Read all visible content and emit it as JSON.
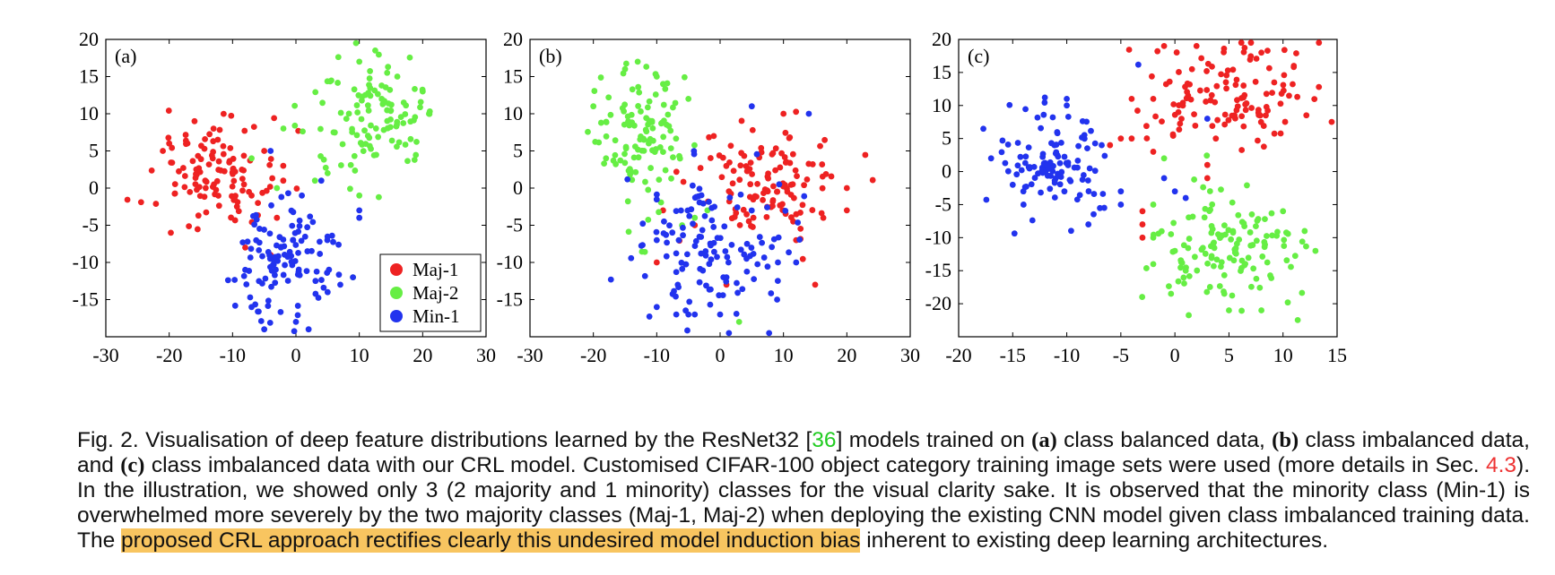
{
  "chart_data": [
    {
      "type": "scatter",
      "panel_label": "(a)",
      "xlim": [
        -30,
        30
      ],
      "ylim": [
        -20,
        20
      ],
      "xticks": [
        -30,
        -20,
        -10,
        0,
        10,
        20,
        30
      ],
      "yticks": [
        20,
        15,
        10,
        5,
        0,
        -5,
        -10,
        -15
      ],
      "legend": "bottom-right",
      "series": [
        {
          "name": "Maj-1",
          "color": "#ee2222",
          "cx": -13,
          "cy": 2,
          "sx": 5,
          "sy": 4,
          "n": 110,
          "extra": [
            [
              -21,
              5
            ],
            [
              -20,
              6
            ],
            [
              -16,
              9
            ],
            [
              -13,
              8
            ],
            [
              -5,
              5
            ],
            [
              -2,
              1
            ],
            [
              -3,
              -4
            ],
            [
              -8,
              -8
            ],
            [
              -6,
              -2
            ],
            [
              -4,
              -9
            ],
            [
              -2,
              3
            ],
            [
              -7,
              -1
            ]
          ]
        },
        {
          "name": "Maj-2",
          "color": "#66ee44",
          "cx": 12,
          "cy": 9,
          "sx": 5,
          "sy": 4,
          "n": 110,
          "extra": [
            [
              10,
              17
            ],
            [
              16,
              15
            ],
            [
              20,
              13
            ],
            [
              5,
              2
            ],
            [
              3,
              1
            ],
            [
              -3,
              0
            ],
            [
              -7,
              4
            ],
            [
              9,
              -12
            ],
            [
              10,
              -1
            ],
            [
              21,
              10
            ]
          ]
        },
        {
          "name": "Min-1",
          "color": "#2233ee",
          "cx": -2,
          "cy": -10,
          "sx": 4,
          "sy": 4.5,
          "n": 110,
          "extra": [
            [
              -8,
              -11
            ],
            [
              -7,
              -16
            ],
            [
              -5,
              -19
            ],
            [
              0,
              -18
            ],
            [
              2,
              -19
            ],
            [
              5,
              -14
            ],
            [
              7,
              -13
            ],
            [
              9,
              -12
            ],
            [
              10,
              -3
            ],
            [
              10,
              -4
            ],
            [
              4,
              1
            ],
            [
              -4,
              5
            ]
          ]
        }
      ]
    },
    {
      "type": "scatter",
      "panel_label": "(b)",
      "xlim": [
        -30,
        30
      ],
      "ylim": [
        -20,
        20
      ],
      "xticks": [
        -30,
        -20,
        -10,
        0,
        10,
        20,
        30
      ],
      "yticks": [
        20,
        15,
        10,
        5,
        0,
        -5,
        -10,
        -15
      ],
      "series": [
        {
          "name": "Maj-1",
          "color": "#ee2222",
          "cx": 8,
          "cy": 0,
          "sx": 6,
          "sy": 3.5,
          "n": 120,
          "extra": [
            [
              10,
              10
            ],
            [
              -1,
              7
            ],
            [
              20,
              0
            ],
            [
              20,
              -3
            ],
            [
              -10,
              -10
            ],
            [
              15,
              -13
            ],
            [
              -4,
              -5
            ],
            [
              1,
              -13
            ],
            [
              12,
              -7
            ],
            [
              -9,
              -3
            ]
          ]
        },
        {
          "name": "Maj-2",
          "color": "#66ee44",
          "cx": -12,
          "cy": 7,
          "sx": 4,
          "sy": 5,
          "n": 110,
          "extra": [
            [
              -20,
              11
            ],
            [
              -15,
              16
            ],
            [
              -13,
              17
            ],
            [
              -9,
              14
            ],
            [
              -10,
              15
            ],
            [
              -5,
              12
            ],
            [
              3,
              -18
            ],
            [
              -2,
              -3
            ],
            [
              -6,
              -5
            ],
            [
              -4,
              -4
            ],
            [
              -18,
              4
            ]
          ]
        },
        {
          "name": "Min-1",
          "color": "#2233ee",
          "cx": 0,
          "cy": -8,
          "sx": 6,
          "sy": 5,
          "n": 130,
          "extra": [
            [
              -5,
              -17
            ],
            [
              -4,
              -17
            ],
            [
              0,
              -17
            ],
            [
              -10,
              -16
            ],
            [
              14,
              10
            ],
            [
              5,
              11
            ],
            [
              1,
              -12
            ],
            [
              9,
              -15
            ],
            [
              -10,
              -7
            ],
            [
              12,
              -10
            ]
          ]
        }
      ]
    },
    {
      "type": "scatter",
      "panel_label": "(c)",
      "xlim": [
        -20,
        15
      ],
      "ylim": [
        -25,
        20
      ],
      "xticks": [
        -20,
        -15,
        -10,
        -5,
        0,
        5,
        10,
        15
      ],
      "yticks": [
        20,
        15,
        10,
        5,
        0,
        -5,
        -10,
        -15,
        -20
      ],
      "series": [
        {
          "name": "Maj-1",
          "color": "#ee2222",
          "cx": 5,
          "cy": 11,
          "sx": 3.8,
          "sy": 4,
          "n": 120,
          "extra": [
            [
              -1,
              19
            ],
            [
              2,
              19
            ],
            [
              8,
              18
            ],
            [
              11,
              16
            ],
            [
              -4,
              11
            ],
            [
              -2,
              11
            ],
            [
              -4,
              5
            ],
            [
              -2,
              3
            ],
            [
              -3,
              -6
            ],
            [
              -3,
              -8
            ],
            [
              -3,
              -10
            ],
            [
              3,
              -1
            ],
            [
              3,
              1
            ],
            [
              -6,
              4
            ],
            [
              -5,
              5
            ]
          ]
        },
        {
          "name": "Maj-2",
          "color": "#66ee44",
          "cx": 5.5,
          "cy": -12,
          "sx": 3.5,
          "sy": 4,
          "n": 130,
          "extra": [
            [
              -2,
              -10
            ],
            [
              -2,
              -14
            ],
            [
              1,
              -15
            ],
            [
              5,
              -21
            ],
            [
              8,
              -21
            ],
            [
              10,
              -6
            ],
            [
              12,
              -9
            ],
            [
              13,
              -12
            ],
            [
              -1,
              2
            ],
            [
              -2,
              -5
            ],
            [
              0,
              -12
            ]
          ]
        },
        {
          "name": "Min-1",
          "color": "#2233ee",
          "cx": -11,
          "cy": 1,
          "sx": 3,
          "sy": 4,
          "n": 110,
          "extra": [
            [
              -10,
              11
            ],
            [
              -10,
              10
            ],
            [
              -17,
              2
            ],
            [
              -15,
              -2
            ],
            [
              -14,
              -5
            ],
            [
              -8,
              -8
            ],
            [
              -5,
              -3
            ],
            [
              -5,
              -5
            ],
            [
              3,
              8
            ],
            [
              0,
              -3
            ],
            [
              1,
              -4
            ],
            [
              -1,
              -1
            ]
          ]
        }
      ]
    }
  ],
  "caption": {
    "p1": "Fig. 2. Visualisation of deep feature distributions learned by the ResNet32 [",
    "ref1": "36",
    "p2": "] models trained on ",
    "a": "(a)",
    "p3": " class balanced data, ",
    "b": "(b)",
    "p4": " class imbalanced data, and ",
    "c": "(c)",
    "p5": " class imbalanced data with our CRL model. Customised CIFAR-100 object category training image sets were used (more details in Sec. ",
    "ref2": "4.3",
    "p6": "). In the illustration, we showed only 3 (2 majority and 1 minority) classes for the visual clarity sake. It is observed that the minority class (Min-1) is overwhelmed more severely by the two majority classes (Maj-1, Maj-2) when deploying the existing CNN model given class imbalanced training data. The ",
    "highlight": "proposed CRL approach rectifies clearly this undesired model induction bias",
    "p7": " inherent to existing deep learning architectures."
  }
}
